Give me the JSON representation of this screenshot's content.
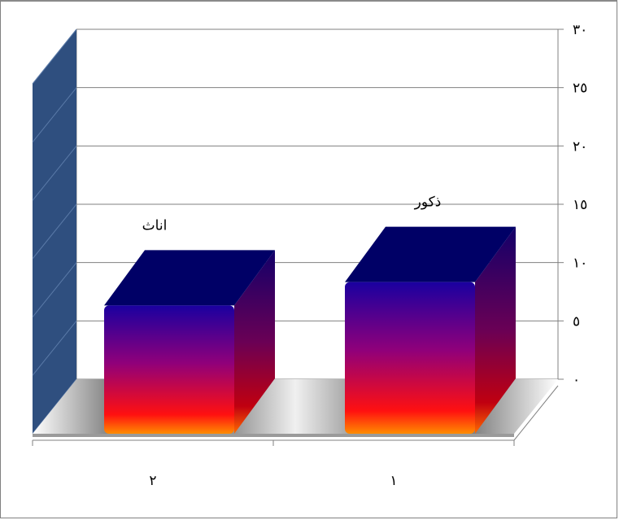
{
  "chart_data": {
    "type": "bar",
    "categories": [
      "٢",
      "١"
    ],
    "series": [
      {
        "values": [
          11,
          13
        ]
      }
    ],
    "data_labels": [
      "اناث",
      "ذكور"
    ],
    "y_ticks": [
      "٠",
      "٥",
      "١٠",
      "١٥",
      "٢٠",
      "٢٥",
      "٣٠"
    ],
    "ylim": [
      0,
      30
    ],
    "y_step": 5,
    "grid": true,
    "style": "3d-column",
    "y_axis_side": "right",
    "colors": {
      "bar_top": "#000066",
      "bar_front_top": "#1a00a0",
      "bar_front_mid": "#9a0060",
      "bar_front_bottom": "#ff1000",
      "bar_base": "#ff8c00",
      "side_wall": "#2f4f7f",
      "gridline": "#808080"
    }
  }
}
